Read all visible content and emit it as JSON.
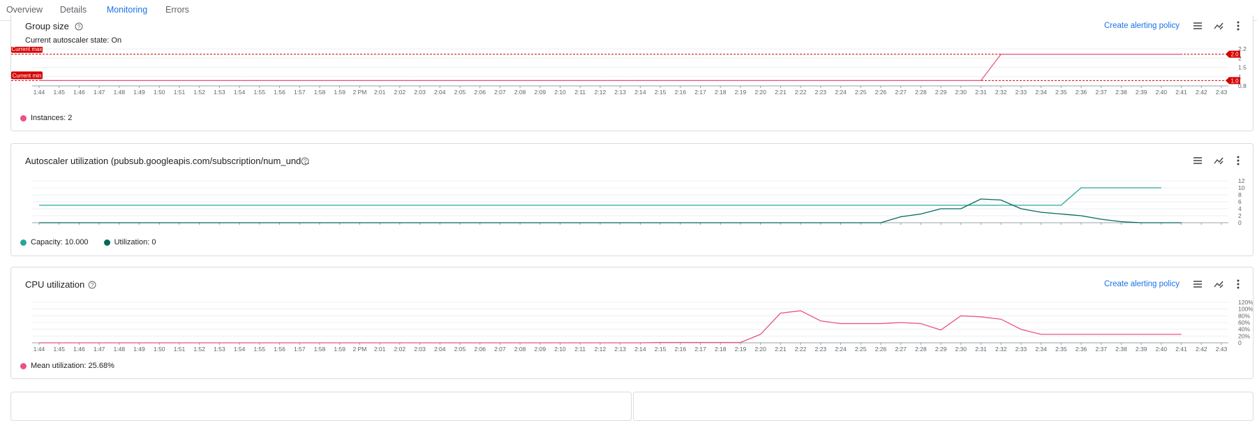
{
  "tabs": [
    {
      "label": "Overview"
    },
    {
      "label": "Details"
    },
    {
      "label": "Monitoring",
      "active": true
    },
    {
      "label": "Errors"
    }
  ],
  "colors": {
    "accent": "#1a73e8",
    "threshold_red": "#d50000",
    "instances_pink": "#e8547f",
    "capacity_teal": "#26a69a",
    "utilization_green": "#00695c",
    "cpu_pink": "#e8547f"
  },
  "xaxis": {
    "ticks": [
      "1:44",
      "1:45",
      "1:46",
      "1:47",
      "1:48",
      "1:49",
      "1:50",
      "1:51",
      "1:52",
      "1:53",
      "1:54",
      "1:55",
      "1:56",
      "1:57",
      "1:58",
      "1:59",
      "2 PM",
      "2:01",
      "2:02",
      "2:03",
      "2:04",
      "2:05",
      "2:06",
      "2:07",
      "2:08",
      "2:09",
      "2:10",
      "2:11",
      "2:12",
      "2:13",
      "2:14",
      "2:15",
      "2:16",
      "2:17",
      "2:18",
      "2:19",
      "2:20",
      "2:21",
      "2:22",
      "2:23",
      "2:24",
      "2:25",
      "2:26",
      "2:27",
      "2:28",
      "2:29",
      "2:30",
      "2:31",
      "2:32",
      "2:33",
      "2:34",
      "2:35",
      "2:36",
      "2:37",
      "2:38",
      "2:39",
      "2:40",
      "2:41",
      "2:42",
      "2:43"
    ]
  },
  "group_size": {
    "title": "Group size",
    "autoscaler_state": "Current autoscaler state: On",
    "alert_link": "Create alerting policy",
    "max_badge": "Current max",
    "min_badge": "Current min",
    "max_value_label": "2.0",
    "min_value_label": "1.0",
    "legend": [
      {
        "label": "Instances: 2",
        "color": "#e8547f"
      }
    ]
  },
  "autoscaler": {
    "title": "Autoscaler utilization (pubsub.googleapis.com/subscription/num_und…",
    "legend": [
      {
        "label": "Capacity: 10.000",
        "color": "#26a69a"
      },
      {
        "label": "Utilization: 0",
        "color": "#00695c"
      }
    ]
  },
  "cpu": {
    "title": "CPU utilization",
    "alert_link": "Create alerting policy",
    "legend": [
      {
        "label": "Mean utilization: 25.68%",
        "color": "#e8547f"
      }
    ]
  },
  "icons": [
    "help-icon",
    "legend-toggle-icon",
    "explore-chart-icon",
    "more-vert-icon"
  ],
  "chart_data": [
    {
      "type": "line",
      "title": "Group size",
      "ylim": [
        0.8,
        2.2
      ],
      "yticks": [
        "0.8",
        "1",
        "1.5",
        "2",
        "2.2"
      ],
      "thresholds": [
        {
          "name": "Current max",
          "value": 2.0
        },
        {
          "name": "Current min",
          "value": 1.0
        }
      ],
      "series": [
        {
          "name": "Instances",
          "x": [
            "1:44",
            "2:31",
            "2:32",
            "2:41"
          ],
          "values": [
            1,
            1,
            2,
            2
          ]
        }
      ]
    },
    {
      "type": "line",
      "title": "Autoscaler utilization (pubsub.googleapis.com/subscription/num_und…",
      "ylim": [
        0,
        12
      ],
      "yticks": [
        "0",
        "2",
        "4",
        "6",
        "8",
        "10",
        "12"
      ],
      "series": [
        {
          "name": "Capacity",
          "x": [
            "1:44",
            "2:35",
            "2:36",
            "2:40"
          ],
          "values": [
            5,
            5,
            10,
            10
          ]
        },
        {
          "name": "Utilization",
          "x": [
            "1:44",
            "2:25",
            "2:26",
            "2:27",
            "2:28",
            "2:29",
            "2:30",
            "2:31",
            "2:32",
            "2:33",
            "2:34",
            "2:35",
            "2:36",
            "2:37",
            "2:38",
            "2:39",
            "2:40",
            "2:41"
          ],
          "values": [
            0,
            0,
            0,
            1.7,
            2.5,
            4,
            4,
            6.8,
            6.5,
            4,
            3,
            2.5,
            2,
            1,
            0.3,
            0,
            0,
            0
          ]
        }
      ]
    },
    {
      "type": "line",
      "title": "CPU utilization",
      "ylim": [
        0,
        120
      ],
      "yticks": [
        "0",
        "20%",
        "40%",
        "60%",
        "80%",
        "100%",
        "120%"
      ],
      "series": [
        {
          "name": "Mean utilization",
          "x": [
            "1:44",
            "2:14",
            "2:15",
            "2:18",
            "2:19",
            "2:20",
            "2:21",
            "2:22",
            "2:23",
            "2:24",
            "2:25",
            "2:26",
            "2:27",
            "2:28",
            "2:29",
            "2:30",
            "2:31",
            "2:32",
            "2:33",
            "2:34",
            "2:35",
            "2:36",
            "2:37",
            "2:38",
            "2:39",
            "2:40",
            "2:41"
          ],
          "values": [
            0,
            0,
            1,
            1,
            1,
            25,
            88,
            95,
            65,
            57,
            57,
            57,
            60,
            57,
            38,
            80,
            77,
            70,
            40,
            25,
            25,
            25,
            25,
            25,
            25,
            25,
            25
          ]
        }
      ]
    }
  ]
}
